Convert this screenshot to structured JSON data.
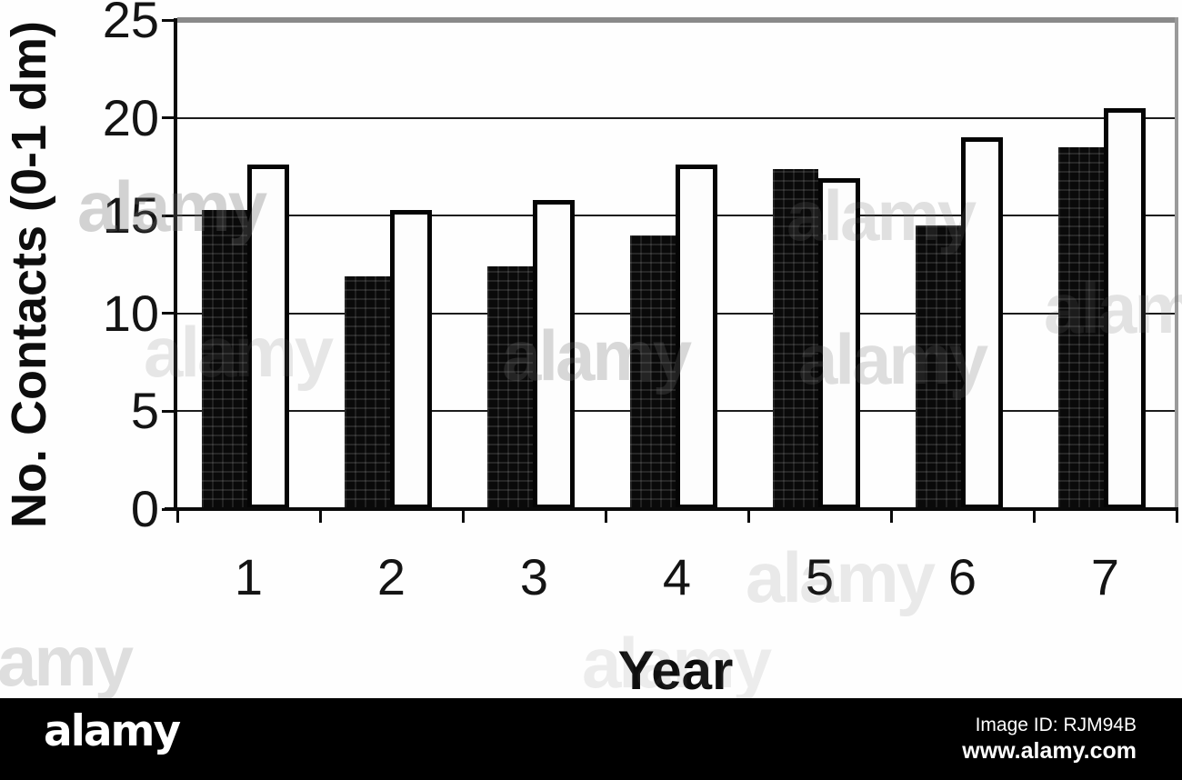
{
  "page": {
    "background": "#fefefe"
  },
  "chart_data": {
    "type": "bar",
    "title": "",
    "categories": [
      "1",
      "2",
      "3",
      "4",
      "5",
      "6",
      "7"
    ],
    "series": [
      {
        "name": "filled-stippled-black-bars",
        "values": [
          15.3,
          11.9,
          12.4,
          14.0,
          17.4,
          14.5,
          18.5
        ]
      },
      {
        "name": "open-white-outlined-bars",
        "values": [
          17.6,
          15.3,
          15.8,
          17.6,
          16.9,
          19.0,
          20.5
        ]
      }
    ],
    "xlabel": "Year",
    "ylabel": "No. Contacts (0-1 dm)",
    "ylim": [
      0,
      25
    ],
    "yticks": [
      0,
      5,
      10,
      15,
      20,
      25
    ],
    "grid": "horizontal",
    "legend_position": "none",
    "bar_colors": {
      "filled": "#0a0a0a",
      "open": "#ffffff",
      "open_border": "#050505"
    },
    "gridline_color": "#1c1c1c",
    "frame_top_color": "#8a8a8a"
  },
  "watermark": {
    "tile_text": "alamy",
    "brand_logo": "alamy",
    "image_id": "Image ID: RJM94B",
    "site_url": "www.alamy.com",
    "band_color": "#000000"
  }
}
